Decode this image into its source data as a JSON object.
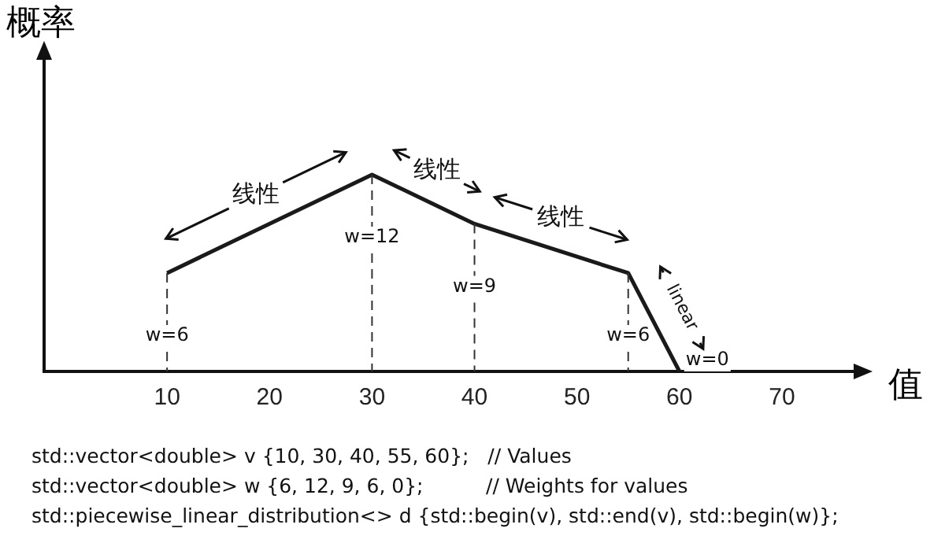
{
  "chart_data": {
    "type": "line",
    "xlabel": "值",
    "ylabel": "概率",
    "x": [
      10,
      30,
      40,
      55,
      60
    ],
    "series": [
      {
        "color": "#1a1a1a",
        "values": [
          6,
          12,
          9,
          6,
          0
        ],
        "value_labels": [
          "w=6",
          "w=12",
          "w=9",
          "w=6",
          "w=0"
        ]
      }
    ],
    "xlim": [
      -2,
      77
    ],
    "xticks": [
      10,
      20,
      30,
      40,
      50,
      60,
      70
    ],
    "ylim": [
      0,
      19
    ],
    "tick_labels": "x",
    "grid": false,
    "legend": false,
    "marker": "none",
    "line_style": "solid",
    "ref_lines": [
      {
        "axis": "x",
        "value": 10,
        "line_style": "dashed",
        "color": "#333333"
      },
      {
        "axis": "x",
        "value": 30,
        "line_style": "dashed",
        "color": "#333333"
      },
      {
        "axis": "x",
        "value": 40,
        "line_style": "dashed",
        "color": "#333333"
      },
      {
        "axis": "x",
        "value": 55,
        "line_style": "dashed",
        "color": "#333333"
      }
    ],
    "annotations": [
      "线性",
      "线性",
      "线性",
      "linear",
      "std::vector<double> v {10, 30, 40, 55, 60};   // Values",
      "std::vector<double> w {6, 12, 9, 6, 0};          // Weights for values",
      "std::piecewise_linear_distribution<> d {std::begin(v), std::end(v), std::begin(w)};"
    ]
  }
}
